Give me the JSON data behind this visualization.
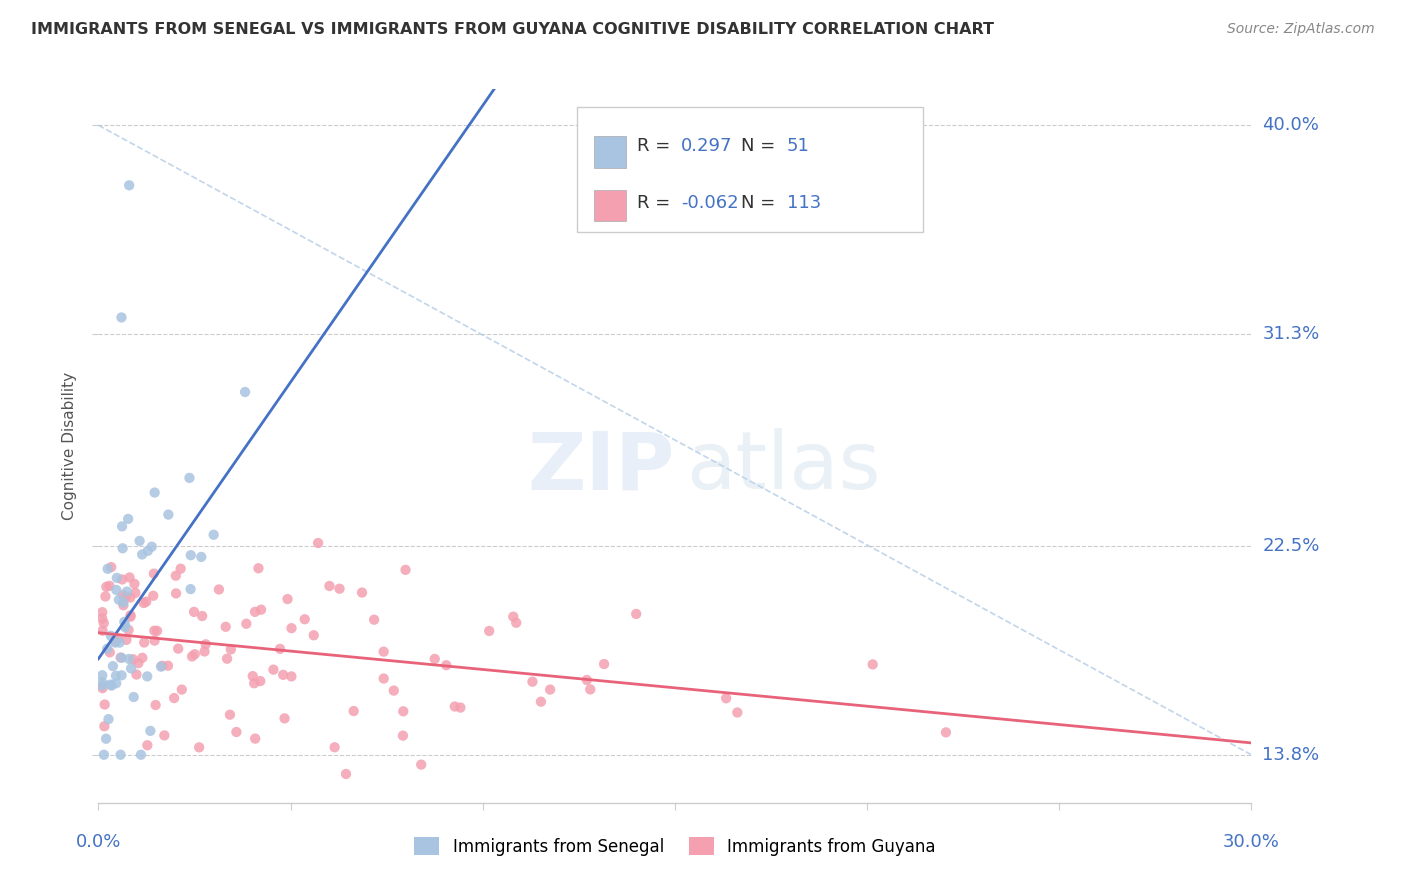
{
  "title": "IMMIGRANTS FROM SENEGAL VS IMMIGRANTS FROM GUYANA COGNITIVE DISABILITY CORRELATION CHART",
  "source": "Source: ZipAtlas.com",
  "ylabel": "Cognitive Disability",
  "xlim": [
    0.0,
    0.3
  ],
  "ylim": [
    0.118,
    0.415
  ],
  "yticks": [
    0.138,
    0.225,
    0.313,
    0.4
  ],
  "ytick_labels": [
    "13.8%",
    "22.5%",
    "31.3%",
    "40.0%"
  ],
  "xticks": [
    0.0,
    0.05,
    0.1,
    0.15,
    0.2,
    0.25,
    0.3
  ],
  "senegal_R": 0.297,
  "senegal_N": 51,
  "guyana_R": -0.062,
  "guyana_N": 113,
  "color_senegal": "#a8c4e0",
  "color_guyana": "#f4a0b0",
  "color_senegal_line": "#4472c4",
  "color_guyana_line": "#e8637a",
  "color_ref_line": "#a8c4e0",
  "background_color": "#ffffff",
  "watermark_zip_color": "#d0dff0",
  "watermark_atlas_color": "#c8d8e8",
  "title_color": "#333333",
  "source_color": "#888888",
  "axis_label_color": "#4472c4",
  "ylabel_color": "#555555"
}
